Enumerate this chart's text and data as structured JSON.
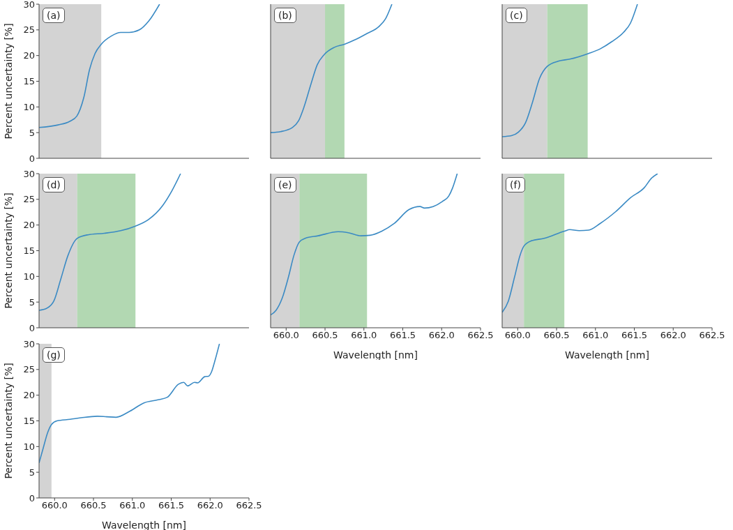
{
  "chart_data": [
    {
      "type": "line",
      "annotations": [
        "(a)"
      ],
      "ylabel": "Percent uncertainty [%]",
      "tick_labels": "y",
      "xlim": [
        659.8,
        662.5
      ],
      "xticks": [
        660,
        660.5,
        661,
        661.5,
        662,
        662.5
      ],
      "ylim": [
        0,
        30
      ],
      "yticks": [
        0,
        5,
        10,
        15,
        20,
        25,
        30
      ],
      "bands": [
        {
          "axis": "x",
          "from": 659.8,
          "to": 660.6,
          "color": "#d3d3d3"
        }
      ],
      "series": [
        {
          "color": "#3a8ac4",
          "x": [
            659.8,
            660.045,
            660.195,
            660.285,
            660.375,
            660.45,
            660.52,
            660.6,
            660.73,
            660.85,
            660.96,
            661.09,
            661.21,
            661.35
          ],
          "values": [
            6.0,
            6.5,
            7.2,
            8.2,
            11.8,
            17.3,
            20.4,
            22.2,
            23.8,
            24.5,
            24.5,
            25.0,
            26.7,
            30
          ]
        }
      ]
    },
    {
      "type": "line",
      "annotations": [
        "(b)"
      ],
      "tick_labels": false,
      "xlim": [
        659.8,
        662.5
      ],
      "xticks": [
        660,
        660.5,
        661,
        661.5,
        662,
        662.5
      ],
      "ylim": [
        0,
        30
      ],
      "yticks": [
        0,
        5,
        10,
        15,
        20,
        25,
        30
      ],
      "bands": [
        {
          "axis": "x",
          "from": 659.8,
          "to": 660.5,
          "color": "#d3d3d3"
        },
        {
          "axis": "x",
          "from": 660.5,
          "to": 660.75,
          "color": "#b2d8b2"
        }
      ],
      "series": [
        {
          "color": "#3a8ac4",
          "x": [
            659.8,
            659.93,
            660.08,
            660.16,
            660.23,
            660.32,
            660.4,
            660.49,
            660.62,
            660.75,
            660.89,
            661.04,
            661.19,
            661.28,
            661.36
          ],
          "values": [
            5.0,
            5.2,
            6.0,
            7.3,
            10.0,
            14.5,
            18.2,
            20.2,
            21.6,
            22.2,
            23.1,
            24.3,
            25.6,
            27.2,
            30
          ]
        }
      ]
    },
    {
      "type": "line",
      "annotations": [
        "(c)"
      ],
      "tick_labels": false,
      "xlim": [
        659.8,
        662.5
      ],
      "xticks": [
        660,
        660.5,
        661,
        661.5,
        662,
        662.5
      ],
      "ylim": [
        0,
        30
      ],
      "yticks": [
        0,
        5,
        10,
        15,
        20,
        25,
        30
      ],
      "bands": [
        {
          "axis": "x",
          "from": 659.8,
          "to": 660.38,
          "color": "#d3d3d3"
        },
        {
          "axis": "x",
          "from": 660.38,
          "to": 660.9,
          "color": "#b2d8b2"
        }
      ],
      "series": [
        {
          "color": "#3a8ac4",
          "x": [
            659.8,
            659.92,
            660.01,
            660.1,
            660.19,
            660.28,
            660.38,
            660.52,
            660.67,
            660.91,
            661.06,
            661.21,
            661.36,
            661.45,
            661.54
          ],
          "values": [
            4.2,
            4.4,
            5.1,
            6.9,
            10.9,
            15.5,
            17.9,
            18.9,
            19.3,
            20.4,
            21.3,
            22.7,
            24.5,
            26.3,
            30
          ]
        }
      ]
    },
    {
      "type": "line",
      "annotations": [
        "(d)"
      ],
      "ylabel": "Percent uncertainty [%]",
      "tick_labels": "y",
      "xlim": [
        659.8,
        662.5
      ],
      "xticks": [
        660,
        660.5,
        661,
        661.5,
        662,
        662.5
      ],
      "ylim": [
        0,
        30
      ],
      "yticks": [
        0,
        5,
        10,
        15,
        20,
        25,
        30
      ],
      "bands": [
        {
          "axis": "x",
          "from": 659.8,
          "to": 660.29,
          "color": "#d3d3d3"
        },
        {
          "axis": "x",
          "from": 660.29,
          "to": 661.04,
          "color": "#b2d8b2"
        }
      ],
      "series": [
        {
          "color": "#3a8ac4",
          "x": [
            659.8,
            659.9,
            659.99,
            660.08,
            660.17,
            660.29,
            660.43,
            660.64,
            660.85,
            661.04,
            661.21,
            661.39,
            661.51,
            661.62
          ],
          "values": [
            3.4,
            3.8,
            5.2,
            9.5,
            14.0,
            17.4,
            18.1,
            18.4,
            18.9,
            19.8,
            21.1,
            23.8,
            26.7,
            30
          ]
        }
      ]
    },
    {
      "type": "line",
      "annotations": [
        "(e)"
      ],
      "xlabel": "Wavelength [nm]",
      "tick_labels": "x",
      "xlim": [
        659.8,
        662.5
      ],
      "xticks": [
        {
          "value": 660,
          "label": "660.0"
        },
        660.5,
        {
          "value": 661,
          "label": "661.0"
        },
        661.5,
        {
          "value": 662,
          "label": "662.0"
        },
        662.5
      ],
      "ylim": [
        0,
        30
      ],
      "yticks": [
        0,
        5,
        10,
        15,
        20,
        25,
        30
      ],
      "bands": [
        {
          "axis": "x",
          "from": 659.8,
          "to": 660.17,
          "color": "#d3d3d3"
        },
        {
          "axis": "x",
          "from": 660.17,
          "to": 661.04,
          "color": "#b2d8b2"
        }
      ],
      "series": [
        {
          "color": "#3a8ac4",
          "x": [
            659.8,
            659.87,
            659.95,
            660.03,
            660.1,
            660.17,
            660.26,
            660.41,
            660.67,
            660.8,
            660.96,
            661.08,
            661.23,
            661.39,
            661.58,
            661.72,
            661.78,
            661.89,
            662.01,
            662.09,
            662.14,
            662.2
          ],
          "values": [
            2.5,
            3.4,
            5.8,
            9.9,
            14.1,
            16.7,
            17.5,
            17.9,
            18.7,
            18.5,
            17.9,
            18.0,
            18.8,
            20.3,
            23.0,
            23.6,
            23.3,
            23.6,
            24.6,
            25.6,
            27.2,
            30
          ]
        }
      ]
    },
    {
      "type": "line",
      "annotations": [
        "(f)"
      ],
      "xlabel": "Wavelength [nm]",
      "tick_labels": "x",
      "xlim": [
        659.8,
        662.5
      ],
      "xticks": [
        {
          "value": 660,
          "label": "660.0"
        },
        660.5,
        {
          "value": 661,
          "label": "661.0"
        },
        661.5,
        {
          "value": 662,
          "label": "662.0"
        },
        662.5
      ],
      "ylim": [
        0,
        30
      ],
      "yticks": [
        0,
        5,
        10,
        15,
        20,
        25,
        30
      ],
      "bands": [
        {
          "axis": "x",
          "from": 659.8,
          "to": 660.08,
          "color": "#d3d3d3"
        },
        {
          "axis": "x",
          "from": 660.08,
          "to": 660.6,
          "color": "#b2d8b2"
        }
      ],
      "series": [
        {
          "color": "#3a8ac4",
          "x": [
            659.8,
            659.88,
            659.96,
            660.03,
            660.08,
            660.17,
            660.34,
            660.6,
            660.67,
            660.79,
            660.91,
            661.06,
            661.26,
            661.45,
            661.63,
            661.72,
            661.8
          ],
          "values": [
            3.0,
            5.2,
            9.9,
            14.1,
            15.9,
            16.9,
            17.4,
            18.8,
            19.1,
            18.9,
            19.0,
            20.3,
            22.6,
            25.3,
            27.3,
            29.1,
            30
          ]
        }
      ]
    },
    {
      "type": "line",
      "annotations": [
        "(g)"
      ],
      "xlabel": "Wavelength [nm]",
      "ylabel": "Percent uncertainty [%]",
      "xlim": [
        659.8,
        662.5
      ],
      "xticks": [
        {
          "value": 660,
          "label": "660.0"
        },
        660.5,
        {
          "value": 661,
          "label": "661.0"
        },
        661.5,
        {
          "value": 662,
          "label": "662.0"
        },
        662.5
      ],
      "ylim": [
        0,
        30
      ],
      "yticks": [
        0,
        5,
        10,
        15,
        20,
        25,
        30
      ],
      "bands": [
        {
          "axis": "x",
          "from": 659.8,
          "to": 659.96,
          "color": "#d3d3d3"
        }
      ],
      "series": [
        {
          "color": "#3a8ac4",
          "x": [
            659.8,
            659.85,
            659.91,
            659.96,
            660.03,
            660.2,
            660.34,
            660.55,
            660.67,
            660.79,
            660.97,
            661.15,
            661.33,
            661.45,
            661.59,
            661.66,
            661.71,
            661.8,
            661.84,
            661.93,
            661.98,
            662.02,
            662.06,
            662.12
          ],
          "values": [
            6.8,
            9.5,
            12.7,
            14.3,
            15.0,
            15.3,
            15.6,
            15.9,
            15.8,
            15.7,
            16.9,
            18.5,
            19.1,
            19.6,
            22.1,
            22.5,
            21.8,
            22.5,
            22.4,
            23.6,
            23.7,
            24.6,
            26.6,
            30
          ]
        }
      ]
    }
  ]
}
